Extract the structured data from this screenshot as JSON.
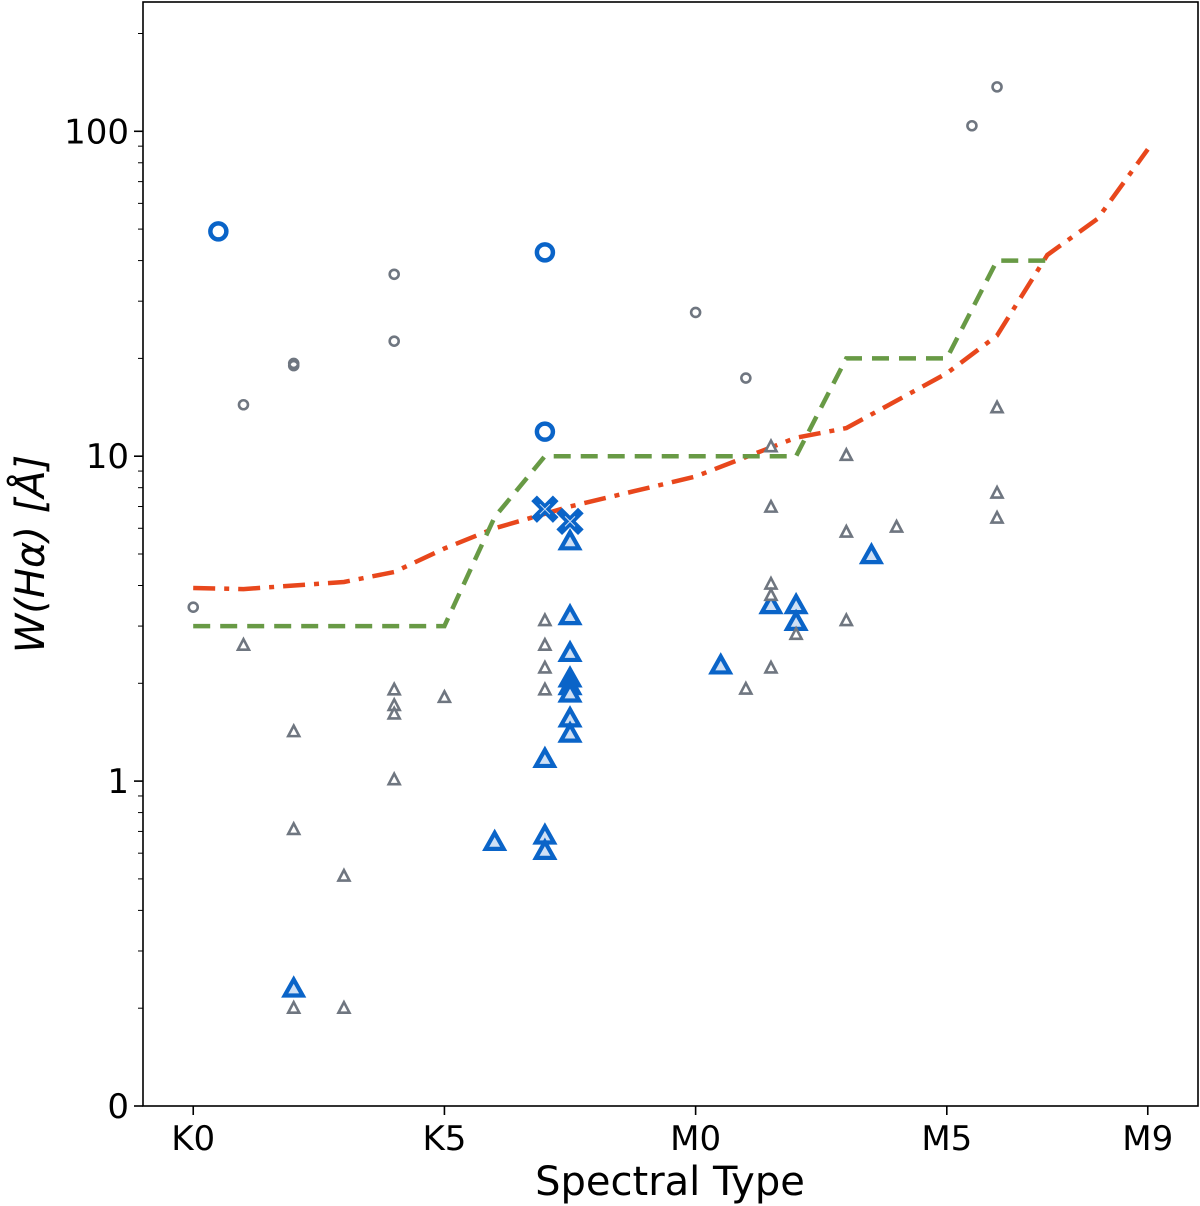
{
  "chart_data": {
    "type": "scatter",
    "title": "",
    "xlabel": "Spectral Type",
    "ylabel": "W(Hα) [Å]",
    "y_scale": "log",
    "xlim": [
      -1,
      20
    ],
    "ylim": [
      0.1,
      250
    ],
    "grid": false,
    "x_ticks": [
      {
        "value": 0,
        "label": "K0"
      },
      {
        "value": 5,
        "label": "K5"
      },
      {
        "value": 10,
        "label": "M0"
      },
      {
        "value": 15,
        "label": "M5"
      },
      {
        "value": 19,
        "label": "M9"
      }
    ],
    "y_ticks": [
      {
        "value": 0.1,
        "label": "0"
      },
      {
        "value": 1,
        "label": "1"
      },
      {
        "value": 10,
        "label": "10"
      },
      {
        "value": 100,
        "label": "100"
      }
    ],
    "colors": {
      "blue": "#0a64c8",
      "gray": "#6f7680",
      "red": "#e8471c",
      "green": "#689a45"
    },
    "series": [
      {
        "marker": "circle-small",
        "color": "gray",
        "points": [
          [
            0,
            3.43
          ],
          [
            1,
            14.4
          ],
          [
            2,
            19.3
          ],
          [
            2,
            19.0
          ],
          [
            4,
            36.3
          ],
          [
            4,
            22.6
          ],
          [
            10,
            27.7
          ],
          [
            11,
            17.4
          ],
          [
            15.5,
            104
          ],
          [
            16,
            137
          ]
        ]
      },
      {
        "marker": "circle-large",
        "color": "blue",
        "points": [
          [
            0.5,
            49.2
          ],
          [
            7,
            42.4
          ],
          [
            7,
            11.9
          ]
        ]
      },
      {
        "marker": "x-large",
        "color": "blue",
        "points": [
          [
            7,
            6.87
          ],
          [
            7.5,
            6.3
          ]
        ]
      },
      {
        "marker": "triangle-large",
        "color": "blue",
        "points": [
          [
            7.5,
            5.47
          ],
          [
            7.5,
            3.22
          ],
          [
            7.5,
            2.48
          ],
          [
            7.5,
            2.07
          ],
          [
            7.5,
            1.96
          ],
          [
            7.5,
            1.86
          ],
          [
            7.5,
            1.56
          ],
          [
            7.5,
            1.4
          ],
          [
            7,
            1.17
          ],
          [
            7,
            0.68
          ],
          [
            7,
            0.61
          ],
          [
            6,
            0.65
          ],
          [
            2,
            0.23
          ],
          [
            10.5,
            2.27
          ],
          [
            11.5,
            3.48
          ],
          [
            12,
            3.48
          ],
          [
            12,
            3.09
          ],
          [
            13.5,
            4.96
          ]
        ]
      },
      {
        "marker": "triangle-small",
        "color": "gray",
        "points": [
          [
            1,
            2.62
          ],
          [
            2,
            1.42
          ],
          [
            2,
            0.71
          ],
          [
            2,
            0.2
          ],
          [
            3,
            0.51
          ],
          [
            3,
            0.2
          ],
          [
            4,
            1.91
          ],
          [
            4,
            1.71
          ],
          [
            4,
            1.61
          ],
          [
            4,
            1.01
          ],
          [
            5,
            1.81
          ],
          [
            7,
            3.12
          ],
          [
            7,
            2.62
          ],
          [
            7,
            2.23
          ],
          [
            7,
            1.91
          ],
          [
            11,
            1.92
          ],
          [
            11.5,
            10.7
          ],
          [
            11.5,
            6.97
          ],
          [
            11.5,
            4.04
          ],
          [
            11.5,
            3.73
          ],
          [
            11.5,
            2.23
          ],
          [
            12,
            2.83
          ],
          [
            13,
            10.06
          ],
          [
            13,
            5.84
          ],
          [
            13,
            3.12
          ],
          [
            14,
            6.05
          ],
          [
            16,
            14.1
          ],
          [
            16,
            7.7
          ],
          [
            16,
            6.45
          ]
        ]
      }
    ],
    "lines": [
      {
        "style": "dash-dot",
        "color": "red",
        "points": [
          [
            0,
            3.93
          ],
          [
            1,
            3.9
          ],
          [
            3,
            4.1
          ],
          [
            4,
            4.4
          ],
          [
            5,
            5.2
          ],
          [
            6,
            6.0
          ],
          [
            7.5,
            7.0
          ],
          [
            10,
            8.66
          ],
          [
            12,
            11.4
          ],
          [
            13,
            12.2
          ],
          [
            15,
            18.0
          ],
          [
            16,
            23.5
          ],
          [
            17,
            41.6
          ],
          [
            18,
            53.8
          ],
          [
            19,
            88
          ]
        ]
      },
      {
        "style": "dashed",
        "color": "green",
        "points": [
          [
            0,
            3.0
          ],
          [
            5,
            3.0
          ],
          [
            6,
            6.5
          ],
          [
            7,
            10
          ],
          [
            12,
            10
          ],
          [
            13,
            20
          ],
          [
            15,
            20
          ],
          [
            16,
            40
          ],
          [
            17,
            40
          ]
        ]
      }
    ]
  }
}
